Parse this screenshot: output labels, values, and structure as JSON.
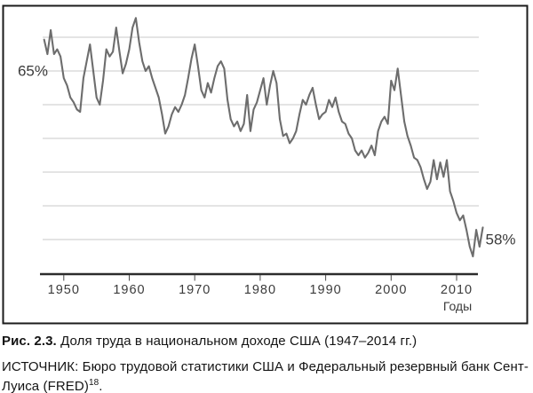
{
  "figure": {
    "caption_label": "Рис. 2.3.",
    "caption_text": "Доля труда в национальном доходе США (1947–2014 гг.)",
    "source_line1": "ИСТОЧНИК: Бюро трудовой статистики США и Федеральный резервный банк Сент-",
    "source_line2_pre": "Луиса (FRED)",
    "source_footnote": "18",
    "source_line2_post": "."
  },
  "chart_data": {
    "type": "line",
    "title": "",
    "xlabel": "Годы",
    "ylabel": "",
    "x_range": [
      1947,
      2014
    ],
    "ylim": [
      57,
      67.5
    ],
    "grid": true,
    "legend": false,
    "x_ticks": [
      1950,
      1960,
      1970,
      1980,
      1990,
      2000,
      2010
    ],
    "x_tick_labels": [
      "1950",
      "1960",
      "1970",
      "1980",
      "1990",
      "2000",
      "2010"
    ],
    "y_gridline_values": [
      66.4,
      65.0,
      63.6,
      62.2,
      60.8,
      59.4,
      58.0
    ],
    "y_point_labels": [
      {
        "value": 65,
        "label": "65%",
        "side": "left"
      },
      {
        "value": 58,
        "label": "58%",
        "side": "right"
      }
    ],
    "series": [
      {
        "name": "Доля труда в национальном доходе США, %",
        "x_start": 1947.0,
        "x_step": 0.5,
        "values": [
          66.3,
          65.7,
          66.7,
          65.7,
          65.9,
          65.6,
          64.7,
          64.4,
          63.9,
          63.7,
          63.4,
          63.3,
          64.7,
          65.4,
          66.1,
          65.0,
          63.9,
          63.6,
          64.6,
          65.9,
          65.6,
          65.8,
          66.8,
          65.8,
          64.9,
          65.3,
          65.9,
          66.8,
          67.2,
          66.2,
          65.4,
          65.0,
          65.2,
          64.7,
          64.3,
          63.9,
          63.2,
          62.4,
          62.7,
          63.2,
          63.5,
          63.3,
          63.6,
          64.0,
          64.7,
          65.5,
          66.1,
          65.2,
          64.2,
          63.9,
          64.5,
          64.1,
          64.7,
          65.2,
          65.4,
          65.1,
          63.8,
          63.0,
          62.7,
          62.9,
          62.5,
          62.8,
          64.0,
          62.5,
          63.4,
          63.7,
          64.2,
          64.7,
          63.6,
          64.4,
          65.0,
          64.5,
          63.0,
          62.3,
          62.4,
          62.0,
          62.2,
          62.5,
          63.2,
          63.8,
          63.6,
          64.0,
          64.3,
          63.6,
          63.0,
          63.2,
          63.3,
          63.8,
          63.5,
          63.9,
          63.3,
          62.9,
          62.8,
          62.4,
          62.2,
          61.7,
          61.5,
          61.7,
          61.4,
          61.6,
          61.9,
          61.5,
          62.5,
          62.9,
          63.1,
          62.8,
          64.6,
          64.2,
          65.1,
          64.0,
          62.9,
          62.3,
          61.9,
          61.4,
          61.3,
          61.0,
          60.5,
          60.1,
          60.4,
          61.3,
          60.5,
          61.2,
          60.6,
          61.3,
          60.0,
          59.6,
          59.1,
          58.8,
          59.0,
          58.4,
          57.7,
          57.3,
          58.4,
          57.7,
          58.5
        ]
      }
    ],
    "colors": {
      "line": "#6d6d6d",
      "gridline": "#c9c9c9",
      "axis": "#2c2c2c",
      "frame": "#1b1b1b",
      "label_text": "#3b3b3b"
    }
  }
}
